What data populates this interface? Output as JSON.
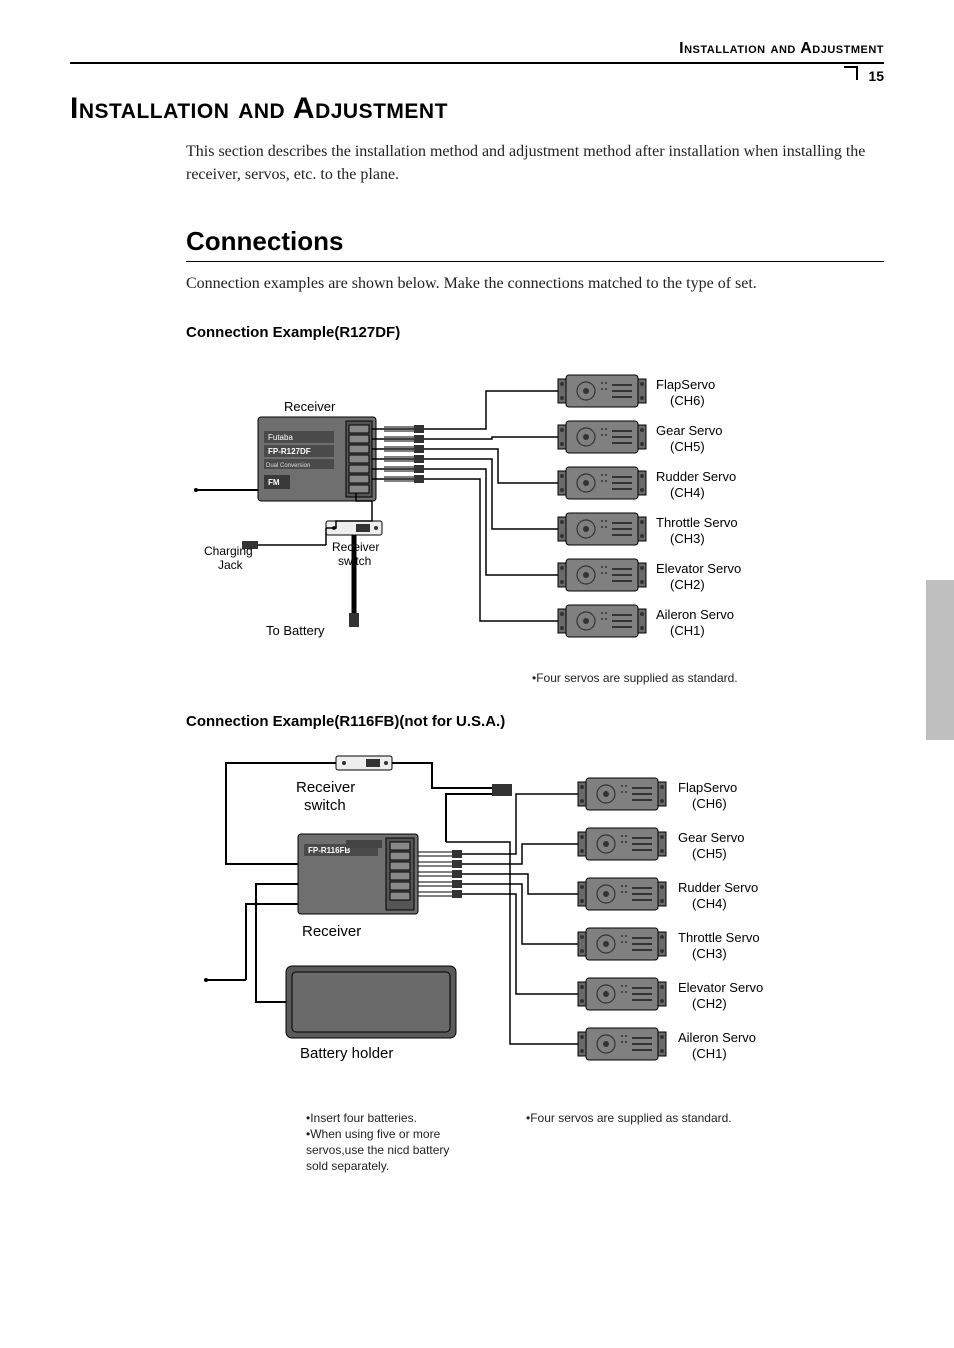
{
  "header": {
    "title": "Installation and Adjustment",
    "page_number": "15"
  },
  "main_heading": "Installation and Adjustment",
  "intro": "This section describes the installation method and adjustment method after installation when installing the receiver, servos, etc. to the plane.",
  "section_heading": "Connections",
  "section_intro": "Connection examples are shown below. Make the connections matched to the type of set.",
  "diagram1": {
    "heading": "Connection Example(R127DF)",
    "receiver_label": "Receiver",
    "receiver_model_top": "Futaba",
    "receiver_model": "FP-R127DF",
    "receiver_sub": "Dual Conversion",
    "receiver_fm": "FM",
    "switch_label": "Receiver switch",
    "charging_label_l1": "Charging",
    "charging_label_l2": "Jack",
    "battery_label": "To Battery",
    "servos": [
      {
        "name": "FlapServo",
        "ch": "(CH6)"
      },
      {
        "name": "Gear Servo",
        "ch": "(CH5)"
      },
      {
        "name": "Rudder Servo",
        "ch": "(CH4)"
      },
      {
        "name": "Throttle Servo",
        "ch": "(CH3)"
      },
      {
        "name": "Elevator Servo",
        "ch": "(CH2)"
      },
      {
        "name": "Aileron Servo",
        "ch": "(CH1)"
      }
    ],
    "footnote": "•Four servos are supplied as standard.",
    "colors": {
      "stroke": "#000000",
      "receiver_fill": "#6f6f6f",
      "receiver_band": "#555555",
      "servo_fill": "#808080",
      "servo_band": "#6a6a6a",
      "wire": "#000000"
    }
  },
  "diagram2": {
    "heading": "Connection Example(R116FB)(not for U.S.A.)",
    "switch_label_l1": "Receiver",
    "switch_label_l2": "switch",
    "receiver_label": "Receiver",
    "receiver_model": "FP-R116FB",
    "battery_label": "Battery holder",
    "servos": [
      {
        "name": "FlapServo",
        "ch": "(CH6)"
      },
      {
        "name": "Gear Servo",
        "ch": "(CH5)"
      },
      {
        "name": "Rudder Servo",
        "ch": "(CH4)"
      },
      {
        "name": "Throttle Servo",
        "ch": "(CH3)"
      },
      {
        "name": "Elevator Servo",
        "ch": "(CH2)"
      },
      {
        "name": "Aileron Servo",
        "ch": "(CH1)"
      }
    ],
    "footnote_left_l1": "•Insert four batteries.",
    "footnote_left_l2": "•When using five or more servos,use the nicd battery sold separately.",
    "footnote_right": "•Four servos are supplied as standard.",
    "colors": {
      "stroke": "#000000",
      "receiver_fill": "#6f6f6f",
      "battery_fill": "#5a5a5a",
      "servo_fill": "#808080",
      "servo_band": "#6a6a6a"
    }
  }
}
